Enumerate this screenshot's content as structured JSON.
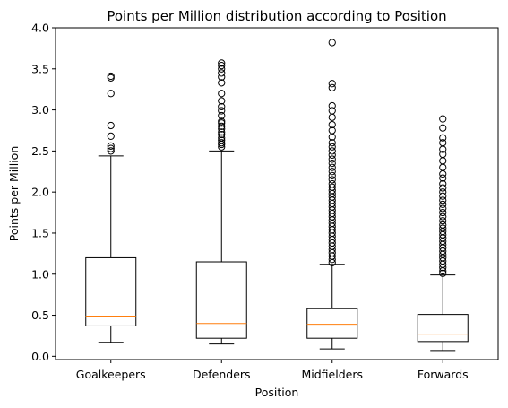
{
  "chart_data": {
    "type": "box",
    "title": "Points per Million distribution according to Position",
    "xlabel": "Position",
    "ylabel": "Points per Million",
    "ylim": [
      -0.04,
      4.0
    ],
    "yticks": [
      0.0,
      0.5,
      1.0,
      1.5,
      2.0,
      2.5,
      3.0,
      3.5,
      4.0
    ],
    "ytick_labels": [
      "0.0",
      "0.5",
      "1.0",
      "1.5",
      "2.0",
      "2.5",
      "3.0",
      "3.5",
      "4.0"
    ],
    "grid": false,
    "colors": {
      "box": "#000000",
      "median": "#ff7f0e",
      "flier": "#000000"
    },
    "categories": [
      "Goalkeepers",
      "Defenders",
      "Midfielders",
      "Forwards"
    ],
    "boxes": [
      {
        "category": "Goalkeepers",
        "whislo": 0.17,
        "q1": 0.37,
        "med": 0.49,
        "q3": 1.2,
        "whishi": 2.44,
        "fliers": [
          2.5,
          2.53,
          2.56,
          2.68,
          2.81,
          3.2,
          3.39,
          3.41
        ]
      },
      {
        "category": "Defenders",
        "whislo": 0.15,
        "q1": 0.22,
        "med": 0.4,
        "q3": 1.15,
        "whishi": 2.5,
        "fliers": [
          2.55,
          2.58,
          2.6,
          2.63,
          2.66,
          2.7,
          2.73,
          2.77,
          2.8,
          2.84,
          2.86,
          2.93,
          2.99,
          3.04,
          3.11,
          3.2,
          3.33,
          3.4,
          3.45,
          3.5,
          3.54,
          3.57
        ]
      },
      {
        "category": "Midfielders",
        "whislo": 0.09,
        "q1": 0.22,
        "med": 0.39,
        "q3": 0.58,
        "whishi": 1.12,
        "fliers": [
          1.14,
          1.18,
          1.22,
          1.26,
          1.3,
          1.34,
          1.38,
          1.42,
          1.46,
          1.5,
          1.54,
          1.58,
          1.62,
          1.66,
          1.7,
          1.74,
          1.78,
          1.82,
          1.86,
          1.9,
          1.94,
          1.98,
          2.02,
          2.06,
          2.1,
          2.15,
          2.2,
          2.25,
          2.3,
          2.35,
          2.4,
          2.45,
          2.5,
          2.55,
          2.6,
          2.67,
          2.75,
          2.82,
          2.91,
          2.99,
          3.05,
          3.27,
          3.32,
          3.82
        ]
      },
      {
        "category": "Forwards",
        "whislo": 0.07,
        "q1": 0.18,
        "med": 0.27,
        "q3": 0.51,
        "whishi": 0.99,
        "fliers": [
          1.01,
          1.04,
          1.08,
          1.12,
          1.16,
          1.2,
          1.24,
          1.28,
          1.32,
          1.36,
          1.4,
          1.44,
          1.48,
          1.52,
          1.56,
          1.6,
          1.65,
          1.7,
          1.75,
          1.8,
          1.85,
          1.9,
          1.95,
          2.0,
          2.05,
          2.1,
          2.17,
          2.22,
          2.3,
          2.38,
          2.46,
          2.52,
          2.6,
          2.66,
          2.78,
          2.89
        ]
      }
    ]
  }
}
